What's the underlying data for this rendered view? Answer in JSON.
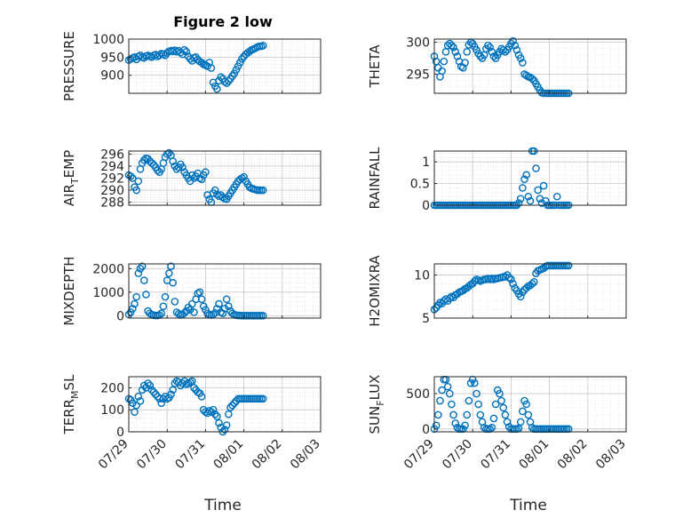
{
  "figure": {
    "title": "Figure 2 low",
    "marker_color": "#0072BD",
    "x_axis_label": "Time"
  },
  "chart_data": [
    {
      "type": "scatter",
      "ylabel": "PRESSURE",
      "ylim": [
        850,
        1000
      ],
      "yticks": [
        900,
        950,
        1000
      ],
      "xlim": [
        0,
        5
      ],
      "grid": true,
      "x": [
        0.0,
        0.05,
        0.1,
        0.15,
        0.2,
        0.25,
        0.3,
        0.35,
        0.4,
        0.45,
        0.5,
        0.55,
        0.6,
        0.65,
        0.7,
        0.75,
        0.8,
        0.85,
        0.9,
        0.95,
        1.0,
        1.05,
        1.1,
        1.15,
        1.2,
        1.25,
        1.3,
        1.35,
        1.4,
        1.45,
        1.5,
        1.55,
        1.6,
        1.65,
        1.7,
        1.75,
        1.8,
        1.85,
        1.9,
        1.95,
        2.0,
        2.05,
        2.1,
        2.15,
        2.2,
        2.25,
        2.3,
        2.35,
        2.4,
        2.45,
        2.5,
        2.55,
        2.6,
        2.65,
        2.7,
        2.75,
        2.8,
        2.85,
        2.9,
        2.95,
        3.0,
        3.05,
        3.1,
        3.15,
        3.2,
        3.25,
        3.3,
        3.35,
        3.4,
        3.45,
        3.5
      ],
      "y": [
        942,
        945,
        948,
        950,
        944,
        952,
        955,
        950,
        948,
        953,
        955,
        952,
        950,
        955,
        957,
        952,
        955,
        960,
        958,
        955,
        962,
        966,
        968,
        966,
        969,
        965,
        968,
        963,
        958,
        970,
        965,
        952,
        945,
        940,
        948,
        950,
        943,
        938,
        935,
        930,
        928,
        925,
        935,
        920,
        880,
        870,
        862,
        885,
        895,
        890,
        882,
        878,
        884,
        890,
        898,
        905,
        915,
        925,
        935,
        945,
        952,
        958,
        962,
        966,
        970,
        972,
        975,
        978,
        980,
        980,
        982
      ]
    },
    {
      "type": "scatter",
      "ylabel": "THETA",
      "ylim": [
        292,
        300.5
      ],
      "yticks": [
        295,
        300
      ],
      "xlim": [
        0,
        5
      ],
      "grid": true,
      "x": [
        0.0,
        0.05,
        0.1,
        0.15,
        0.2,
        0.25,
        0.3,
        0.35,
        0.4,
        0.45,
        0.5,
        0.55,
        0.6,
        0.65,
        0.7,
        0.75,
        0.8,
        0.85,
        0.9,
        0.95,
        1.0,
        1.05,
        1.1,
        1.15,
        1.2,
        1.25,
        1.3,
        1.35,
        1.4,
        1.45,
        1.5,
        1.55,
        1.6,
        1.65,
        1.7,
        1.75,
        1.8,
        1.85,
        1.9,
        1.95,
        2.0,
        2.05,
        2.1,
        2.15,
        2.2,
        2.25,
        2.3,
        2.35,
        2.4,
        2.45,
        2.5,
        2.55,
        2.6,
        2.65,
        2.7,
        2.75,
        2.8,
        2.85,
        2.9,
        2.95,
        3.0,
        3.05,
        3.1,
        3.15,
        3.2,
        3.25,
        3.3,
        3.35,
        3.4,
        3.45,
        3.5
      ],
      "y": [
        297.8,
        297.0,
        296.0,
        294.6,
        295.5,
        297.0,
        298.5,
        299.5,
        299.8,
        299.5,
        299.2,
        298.5,
        297.8,
        297.0,
        296.2,
        296.0,
        296.8,
        298.5,
        299.6,
        300.0,
        299.8,
        299.3,
        298.8,
        298.2,
        297.8,
        297.5,
        298.0,
        299.0,
        299.5,
        299.2,
        298.5,
        297.8,
        297.5,
        298.0,
        298.5,
        299.0,
        298.8,
        298.5,
        298.8,
        299.3,
        299.8,
        300.2,
        299.5,
        298.8,
        298.0,
        297.5,
        296.8,
        295.0,
        294.8,
        294.6,
        294.5,
        294.3,
        294.0,
        293.5,
        293.0,
        292.5,
        292.1,
        292.0,
        292.0,
        292.0,
        292.0,
        292.0,
        292.0,
        292.0,
        292.0,
        292.0,
        292.0,
        292.0,
        292.0,
        292.0,
        292.0
      ]
    },
    {
      "type": "scatter",
      "ylabel": "AIR_TEMP",
      "ylim": [
        287.5,
        296.5
      ],
      "yticks": [
        288,
        290,
        292,
        294,
        296
      ],
      "xlim": [
        0,
        5
      ],
      "grid": true,
      "x": [
        0.0,
        0.05,
        0.1,
        0.15,
        0.2,
        0.25,
        0.3,
        0.35,
        0.4,
        0.45,
        0.5,
        0.55,
        0.6,
        0.65,
        0.7,
        0.75,
        0.8,
        0.85,
        0.9,
        0.95,
        1.0,
        1.05,
        1.1,
        1.15,
        1.2,
        1.25,
        1.3,
        1.35,
        1.4,
        1.45,
        1.5,
        1.55,
        1.6,
        1.65,
        1.7,
        1.75,
        1.8,
        1.85,
        1.9,
        1.95,
        2.0,
        2.05,
        2.1,
        2.15,
        2.2,
        2.25,
        2.3,
        2.35,
        2.4,
        2.45,
        2.5,
        2.55,
        2.6,
        2.65,
        2.7,
        2.75,
        2.8,
        2.85,
        2.9,
        2.95,
        3.0,
        3.05,
        3.1,
        3.15,
        3.2,
        3.25,
        3.3,
        3.35,
        3.4,
        3.45,
        3.5
      ],
      "y": [
        292.5,
        292.3,
        292.0,
        290.5,
        290.0,
        291.5,
        293.5,
        294.5,
        295.0,
        295.3,
        295.2,
        294.8,
        294.5,
        294.2,
        293.8,
        293.3,
        293.0,
        293.5,
        294.5,
        295.5,
        296.0,
        296.2,
        295.8,
        294.8,
        294.0,
        293.5,
        293.8,
        294.3,
        293.8,
        293.0,
        292.5,
        292.0,
        291.5,
        292.5,
        292.0,
        292.3,
        292.8,
        292.0,
        291.8,
        292.5,
        293.0,
        289.2,
        288.5,
        288.0,
        289.5,
        290.0,
        289.3,
        289.0,
        289.2,
        288.8,
        288.6,
        288.5,
        289.0,
        289.5,
        290.0,
        290.5,
        291.0,
        291.5,
        291.8,
        292.0,
        292.2,
        291.5,
        291.0,
        290.5,
        290.3,
        290.2,
        290.1,
        290.0,
        290.0,
        290.0,
        290.0
      ]
    },
    {
      "type": "scatter",
      "ylabel": "RAINFALL",
      "ylim": [
        0,
        1.25
      ],
      "yticks": [
        0,
        0.5,
        1
      ],
      "xlim": [
        0,
        5
      ],
      "grid": true,
      "x": [
        0.0,
        0.05,
        0.1,
        0.15,
        0.2,
        0.25,
        0.3,
        0.35,
        0.4,
        0.45,
        0.5,
        0.55,
        0.6,
        0.65,
        0.7,
        0.75,
        0.8,
        0.85,
        0.9,
        0.95,
        1.0,
        1.05,
        1.1,
        1.15,
        1.2,
        1.25,
        1.3,
        1.35,
        1.4,
        1.45,
        1.5,
        1.55,
        1.6,
        1.65,
        1.7,
        1.75,
        1.8,
        1.85,
        1.9,
        1.95,
        2.0,
        2.05,
        2.1,
        2.15,
        2.2,
        2.25,
        2.3,
        2.35,
        2.4,
        2.45,
        2.5,
        2.55,
        2.6,
        2.65,
        2.7,
        2.75,
        2.8,
        2.85,
        2.9,
        2.95,
        3.0,
        3.05,
        3.1,
        3.15,
        3.2,
        3.25,
        3.3,
        3.35,
        3.4,
        3.45,
        3.5
      ],
      "y": [
        0,
        0,
        0,
        0,
        0,
        0,
        0,
        0,
        0,
        0,
        0,
        0,
        0,
        0,
        0,
        0,
        0,
        0,
        0,
        0,
        0,
        0,
        0,
        0,
        0,
        0,
        0,
        0,
        0,
        0,
        0,
        0,
        0,
        0,
        0,
        0,
        0,
        0,
        0,
        0,
        0,
        0,
        0,
        0,
        0.05,
        0.15,
        0.4,
        0.6,
        0.7,
        0.2,
        0.1,
        1.25,
        1.25,
        0.85,
        0.35,
        0.15,
        0.05,
        0.45,
        0.1,
        0,
        0,
        0,
        0,
        0,
        0.2,
        0,
        0,
        0,
        0,
        0,
        0
      ]
    },
    {
      "type": "scatter",
      "ylabel": "MIXDEPTH",
      "ylim": [
        -100,
        2200
      ],
      "yticks": [
        0,
        1000,
        2000
      ],
      "xlim": [
        0,
        5
      ],
      "grid": true,
      "x": [
        0.0,
        0.05,
        0.1,
        0.15,
        0.2,
        0.25,
        0.3,
        0.35,
        0.4,
        0.45,
        0.5,
        0.55,
        0.6,
        0.65,
        0.7,
        0.75,
        0.8,
        0.85,
        0.9,
        0.95,
        1.0,
        1.05,
        1.1,
        1.15,
        1.2,
        1.25,
        1.3,
        1.35,
        1.4,
        1.45,
        1.5,
        1.55,
        1.6,
        1.65,
        1.7,
        1.75,
        1.8,
        1.85,
        1.9,
        1.95,
        2.0,
        2.05,
        2.1,
        2.15,
        2.2,
        2.25,
        2.3,
        2.35,
        2.4,
        2.45,
        2.5,
        2.55,
        2.6,
        2.65,
        2.7,
        2.75,
        2.8,
        2.85,
        2.9,
        2.95,
        3.0,
        3.05,
        3.1,
        3.15,
        3.2,
        3.25,
        3.3,
        3.35,
        3.4,
        3.45,
        3.5
      ],
      "y": [
        50,
        150,
        300,
        500,
        800,
        1800,
        2000,
        2100,
        1500,
        900,
        200,
        100,
        50,
        20,
        10,
        10,
        30,
        100,
        400,
        800,
        1500,
        1800,
        2100,
        1400,
        600,
        150,
        80,
        40,
        60,
        120,
        200,
        350,
        250,
        500,
        150,
        700,
        950,
        1000,
        700,
        400,
        250,
        100,
        50,
        30,
        60,
        120,
        300,
        500,
        150,
        100,
        300,
        700,
        400,
        200,
        100,
        50,
        20,
        10,
        10,
        0,
        0,
        0,
        0,
        0,
        0,
        0,
        0,
        0,
        0,
        0,
        0
      ]
    },
    {
      "type": "scatter",
      "ylabel": "H2OMIXRA",
      "ylim": [
        5,
        11.3
      ],
      "yticks": [
        5,
        10
      ],
      "xlim": [
        0,
        5
      ],
      "grid": true,
      "x": [
        0.0,
        0.05,
        0.1,
        0.15,
        0.2,
        0.25,
        0.3,
        0.35,
        0.4,
        0.45,
        0.5,
        0.55,
        0.6,
        0.65,
        0.7,
        0.75,
        0.8,
        0.85,
        0.9,
        0.95,
        1.0,
        1.05,
        1.1,
        1.15,
        1.2,
        1.25,
        1.3,
        1.35,
        1.4,
        1.45,
        1.5,
        1.55,
        1.6,
        1.65,
        1.7,
        1.75,
        1.8,
        1.85,
        1.9,
        1.95,
        2.0,
        2.05,
        2.1,
        2.15,
        2.2,
        2.25,
        2.3,
        2.35,
        2.4,
        2.45,
        2.5,
        2.55,
        2.6,
        2.65,
        2.7,
        2.75,
        2.8,
        2.85,
        2.9,
        2.95,
        3.0,
        3.05,
        3.1,
        3.15,
        3.2,
        3.25,
        3.3,
        3.35,
        3.4,
        3.45,
        3.5
      ],
      "y": [
        6.0,
        6.2,
        6.5,
        6.8,
        6.7,
        7.0,
        7.2,
        7.0,
        7.3,
        7.5,
        7.4,
        7.7,
        7.8,
        8.0,
        8.1,
        8.2,
        8.4,
        8.5,
        8.7,
        8.9,
        9.0,
        9.3,
        9.5,
        9.4,
        9.3,
        9.4,
        9.5,
        9.5,
        9.6,
        9.5,
        9.6,
        9.5,
        9.6,
        9.6,
        9.7,
        9.7,
        9.8,
        9.8,
        10.0,
        9.7,
        9.5,
        9.0,
        8.5,
        8.2,
        7.8,
        7.5,
        8.0,
        8.3,
        8.5,
        8.7,
        8.8,
        9.0,
        9.2,
        10.2,
        10.5,
        10.6,
        10.7,
        10.8,
        11.0,
        11.1,
        11.1,
        11.1,
        11.1,
        11.1,
        11.1,
        11.1,
        11.1,
        11.1,
        11.1,
        11.1,
        11.1
      ]
    },
    {
      "type": "scatter",
      "ylabel": "TERR_MSL",
      "ylim": [
        0,
        250
      ],
      "yticks": [
        0,
        100,
        200
      ],
      "xlim": [
        0,
        5
      ],
      "grid": true,
      "x": [
        0.0,
        0.05,
        0.1,
        0.15,
        0.2,
        0.25,
        0.3,
        0.35,
        0.4,
        0.45,
        0.5,
        0.55,
        0.6,
        0.65,
        0.7,
        0.75,
        0.8,
        0.85,
        0.9,
        0.95,
        1.0,
        1.05,
        1.1,
        1.15,
        1.2,
        1.25,
        1.3,
        1.35,
        1.4,
        1.45,
        1.5,
        1.55,
        1.6,
        1.65,
        1.7,
        1.75,
        1.8,
        1.85,
        1.9,
        1.95,
        2.0,
        2.05,
        2.1,
        2.15,
        2.2,
        2.25,
        2.3,
        2.35,
        2.4,
        2.45,
        2.5,
        2.55,
        2.6,
        2.65,
        2.7,
        2.75,
        2.8,
        2.85,
        2.9,
        2.95,
        3.0,
        3.05,
        3.1,
        3.15,
        3.2,
        3.25,
        3.3,
        3.35,
        3.4,
        3.45,
        3.5
      ],
      "y": [
        150,
        145,
        130,
        90,
        120,
        160,
        140,
        190,
        210,
        200,
        220,
        210,
        190,
        180,
        170,
        160,
        150,
        130,
        150,
        160,
        150,
        155,
        170,
        190,
        220,
        230,
        225,
        210,
        220,
        230,
        215,
        220,
        225,
        230,
        200,
        190,
        180,
        175,
        160,
        100,
        90,
        85,
        95,
        90,
        100,
        80,
        70,
        40,
        20,
        0,
        10,
        30,
        80,
        110,
        120,
        130,
        140,
        150,
        150,
        150,
        150,
        150,
        150,
        150,
        150,
        150,
        150,
        150,
        150,
        150,
        150
      ]
    },
    {
      "type": "scatter",
      "ylabel": "SUN_FLUX",
      "ylim": [
        -40,
        740
      ],
      "yticks": [
        0,
        500
      ],
      "xlim": [
        0,
        5
      ],
      "grid": true,
      "x": [
        0.0,
        0.05,
        0.1,
        0.15,
        0.2,
        0.25,
        0.3,
        0.35,
        0.4,
        0.45,
        0.5,
        0.55,
        0.6,
        0.65,
        0.7,
        0.75,
        0.8,
        0.85,
        0.9,
        0.95,
        1.0,
        1.05,
        1.1,
        1.15,
        1.2,
        1.25,
        1.3,
        1.35,
        1.4,
        1.45,
        1.5,
        1.55,
        1.6,
        1.65,
        1.7,
        1.75,
        1.8,
        1.85,
        1.9,
        1.95,
        2.0,
        2.05,
        2.1,
        2.15,
        2.2,
        2.25,
        2.3,
        2.35,
        2.4,
        2.45,
        2.5,
        2.55,
        2.6,
        2.65,
        2.7,
        2.75,
        2.8,
        2.85,
        2.9,
        2.95,
        3.0,
        3.05,
        3.1,
        3.15,
        3.2,
        3.25,
        3.3,
        3.35,
        3.4,
        3.45,
        3.5
      ],
      "y": [
        0,
        50,
        200,
        400,
        550,
        700,
        700,
        600,
        500,
        350,
        200,
        80,
        20,
        0,
        0,
        0,
        50,
        200,
        400,
        650,
        700,
        650,
        500,
        350,
        200,
        100,
        20,
        0,
        0,
        0,
        20,
        150,
        350,
        550,
        500,
        400,
        300,
        200,
        100,
        30,
        0,
        0,
        0,
        0,
        10,
        100,
        250,
        400,
        350,
        200,
        100,
        20,
        0,
        0,
        0,
        0,
        0,
        0,
        0,
        0,
        0,
        0,
        0,
        0,
        0,
        0,
        0,
        0,
        0,
        0,
        0
      ]
    }
  ],
  "x_ticks": [
    "07/29",
    "07/30",
    "07/31",
    "08/01",
    "08/02",
    "08/03"
  ]
}
